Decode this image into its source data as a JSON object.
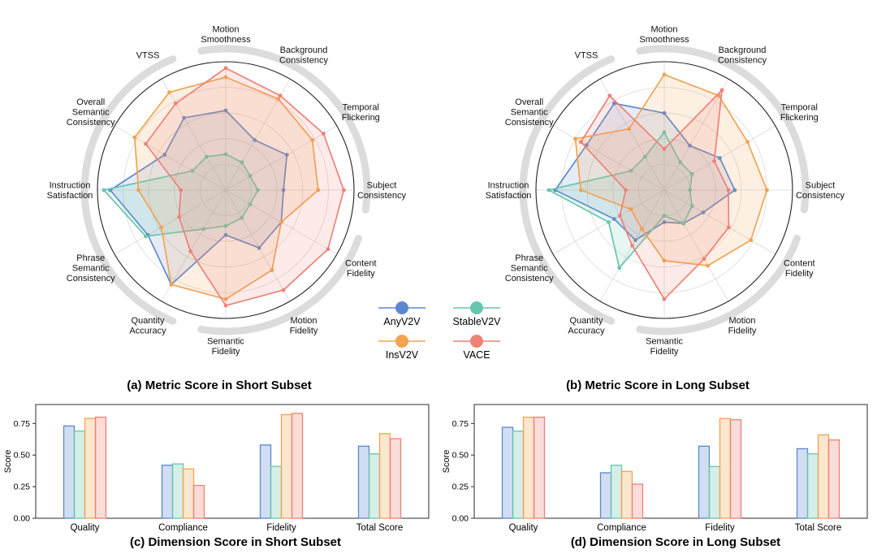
{
  "colors": {
    "AnyV2V": "#5b87d0",
    "StableV2V": "#67c6ae",
    "InsV2V": "#f2a450",
    "VACE": "#ee8178",
    "grid": "#d9d9d9",
    "arc": "#dcdcdc",
    "frame": "#2b2b2b"
  },
  "legend": {
    "items": [
      {
        "label": "AnyV2V"
      },
      {
        "label": "StableV2V"
      },
      {
        "label": "InsV2V"
      },
      {
        "label": "VACE"
      }
    ]
  },
  "chart_data": [
    {
      "type": "radar",
      "title": "(a) Metric Score in Short Subset",
      "scale": [
        0,
        1
      ],
      "group_arcs": [
        [
          -100,
          8
        ],
        [
          20,
          100
        ],
        [
          112,
          248
        ]
      ],
      "axes": [
        "Motion\nSmoothness",
        "Background\nConsistency",
        "Temporal\nFlickering",
        "Subject\nConsistency",
        "Content\nFidelity",
        "Motion\nFidelity",
        "Semantic\nFidelity",
        "Quantity\nAccuracy",
        "Phrase\nSemantic\nConsistency",
        "Instruction\nSatisfaction",
        "Overall\nSemantic\nConsistency",
        "VTSS"
      ],
      "series": [
        {
          "name": "AnyV2V",
          "values": [
            0.62,
            0.45,
            0.55,
            0.45,
            0.5,
            0.52,
            0.35,
            0.85,
            0.7,
            0.9,
            0.55,
            0.65
          ]
        },
        {
          "name": "StableV2V",
          "values": [
            0.28,
            0.25,
            0.22,
            0.25,
            0.22,
            0.25,
            0.28,
            0.35,
            0.72,
            0.95,
            0.3,
            0.3
          ]
        },
        {
          "name": "InsV2V",
          "values": [
            0.88,
            0.82,
            0.78,
            0.72,
            0.5,
            0.72,
            0.85,
            0.85,
            0.58,
            0.68,
            0.82,
            0.88
          ]
        },
        {
          "name": "VACE",
          "values": [
            0.95,
            0.85,
            0.88,
            0.92,
            0.92,
            0.9,
            0.9,
            0.55,
            0.42,
            0.35,
            0.72,
            0.78
          ]
        }
      ]
    },
    {
      "type": "radar",
      "title": "(b) Metric Score in Long Subset",
      "scale": [
        0,
        1
      ],
      "group_arcs": [
        [
          -100,
          8
        ],
        [
          20,
          100
        ],
        [
          112,
          248
        ]
      ],
      "axes": [
        "Motion\nSmoothness",
        "Background\nConsistency",
        "Temporal\nFlickering",
        "Subject\nConsistency",
        "Content\nFidelity",
        "Motion\nFidelity",
        "Semantic\nFidelity",
        "Quantity\nAccuracy",
        "Phrase\nSemantic\nConsistency",
        "Instruction\nSatisfaction",
        "Overall\nSemantic\nConsistency",
        "VTSS"
      ],
      "series": [
        {
          "name": "AnyV2V",
          "values": [
            0.6,
            0.4,
            0.5,
            0.55,
            0.35,
            0.3,
            0.25,
            0.45,
            0.45,
            0.85,
            0.7,
            0.78
          ]
        },
        {
          "name": "StableV2V",
          "values": [
            0.45,
            0.25,
            0.25,
            0.2,
            0.25,
            0.3,
            0.2,
            0.7,
            0.5,
            0.9,
            0.3,
            0.3
          ]
        },
        {
          "name": "InsV2V",
          "values": [
            0.9,
            0.85,
            0.75,
            0.8,
            0.78,
            0.68,
            0.55,
            0.35,
            0.3,
            0.65,
            0.8,
            0.55
          ]
        },
        {
          "name": "VACE",
          "values": [
            0.32,
            0.9,
            0.45,
            0.5,
            0.58,
            0.62,
            0.85,
            0.5,
            0.4,
            0.3,
            0.75,
            0.85
          ]
        }
      ]
    },
    {
      "type": "bar",
      "title": "(c) Dimension Score in Short Subset",
      "categories": [
        "Quality",
        "Compliance",
        "Fidelity",
        "Total Score"
      ],
      "ylabel": "Score",
      "yticks": [
        0,
        0.25,
        0.5,
        0.75
      ],
      "ylim": [
        0,
        0.9
      ],
      "series": [
        {
          "name": "AnyV2V",
          "values": [
            0.73,
            0.42,
            0.58,
            0.57
          ]
        },
        {
          "name": "StableV2V",
          "values": [
            0.69,
            0.43,
            0.41,
            0.51
          ]
        },
        {
          "name": "InsV2V",
          "values": [
            0.79,
            0.39,
            0.82,
            0.67
          ]
        },
        {
          "name": "VACE",
          "values": [
            0.8,
            0.26,
            0.83,
            0.63
          ]
        }
      ]
    },
    {
      "type": "bar",
      "title": "(d) Dimension Score in Long Subset",
      "categories": [
        "Quality",
        "Compliance",
        "Fidelity",
        "Total Score"
      ],
      "ylabel": "Score",
      "yticks": [
        0,
        0.25,
        0.5,
        0.75
      ],
      "ylim": [
        0,
        0.9
      ],
      "series": [
        {
          "name": "AnyV2V",
          "values": [
            0.72,
            0.36,
            0.57,
            0.55
          ]
        },
        {
          "name": "StableV2V",
          "values": [
            0.69,
            0.42,
            0.41,
            0.51
          ]
        },
        {
          "name": "InsV2V",
          "values": [
            0.8,
            0.37,
            0.79,
            0.66
          ]
        },
        {
          "name": "VACE",
          "values": [
            0.8,
            0.27,
            0.78,
            0.62
          ]
        }
      ]
    }
  ]
}
